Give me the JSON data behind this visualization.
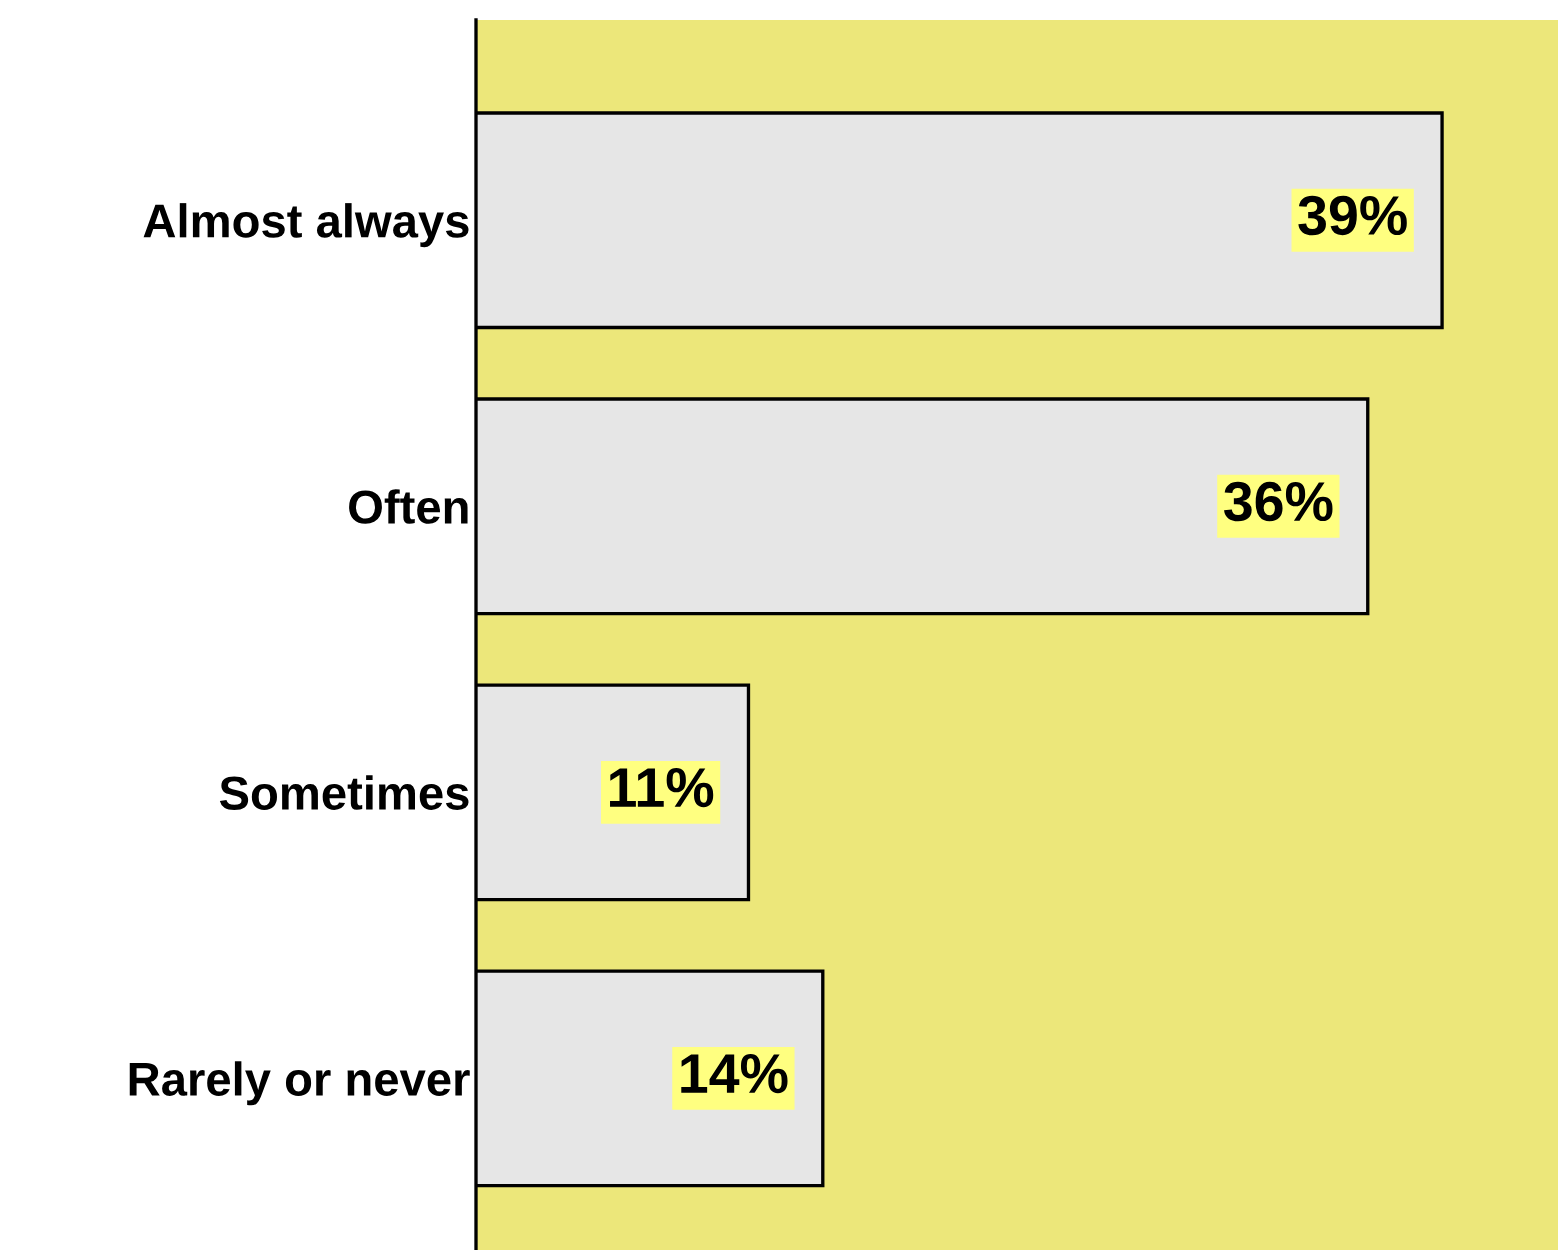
{
  "chart_data": {
    "type": "bar",
    "orientation": "horizontal",
    "categories": [
      "Almost always",
      "Often",
      "Sometimes",
      "Rarely or never"
    ],
    "values": [
      39,
      36,
      11,
      14
    ],
    "value_labels": [
      "39%",
      "36%",
      "11%",
      "14%"
    ],
    "color": "#e6e6e6",
    "grid": false,
    "legend": false,
    "tick_labels": "y"
  }
}
